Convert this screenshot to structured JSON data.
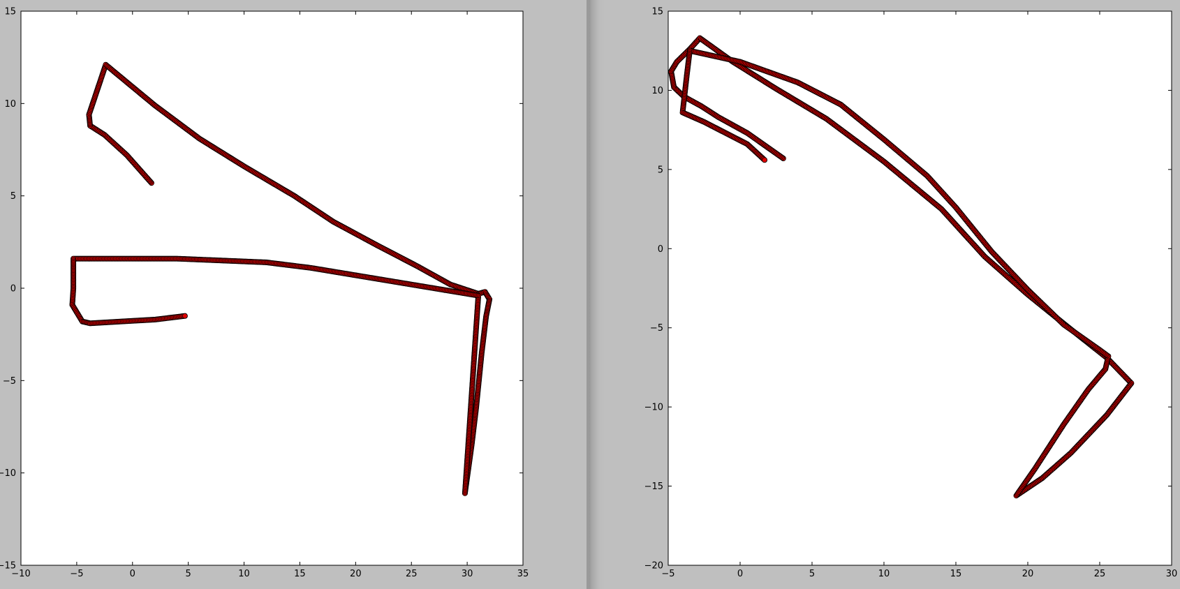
{
  "theme": {
    "background": "#bfbfbf",
    "plot_face": "#ffffff",
    "marker_fill": "#e00000",
    "marker_edge": "#000000"
  },
  "chart_data": [
    {
      "type": "scatter",
      "title": "",
      "xlabel": "",
      "ylabel": "",
      "xlim": [
        -10,
        35
      ],
      "ylim": [
        -15,
        15
      ],
      "xticks": [
        -10,
        -5,
        0,
        5,
        10,
        15,
        20,
        25,
        30,
        35
      ],
      "yticks": [
        -15,
        -10,
        -5,
        0,
        5,
        10,
        15
      ],
      "xtick_labels": [
        "−10",
        "−5",
        "0",
        "5",
        "10",
        "15",
        "20",
        "25",
        "30",
        "35"
      ],
      "ytick_labels": [
        "−15",
        "−10",
        "−5",
        "0",
        "5",
        "10",
        "15"
      ],
      "grid": false,
      "series": [
        {
          "marker": "o",
          "color": "#e00000",
          "path": [
            [
              1.7,
              5.7
            ],
            [
              -0.5,
              7.2
            ],
            [
              -2.5,
              8.3
            ],
            [
              -3.8,
              8.8
            ],
            [
              -3.9,
              9.4
            ],
            [
              -2.4,
              12.1
            ],
            [
              2.0,
              9.9
            ],
            [
              6.0,
              8.1
            ],
            [
              10.0,
              6.6
            ],
            [
              14.5,
              5.0
            ],
            [
              18.0,
              3.6
            ],
            [
              22.0,
              2.3
            ],
            [
              25.5,
              1.2
            ],
            [
              28.5,
              0.2
            ],
            [
              31.0,
              -0.3
            ],
            [
              31.6,
              -0.2
            ],
            [
              32.0,
              -0.6
            ],
            [
              31.7,
              -1.5
            ],
            [
              31.3,
              -3.5
            ],
            [
              30.8,
              -6.5
            ],
            [
              30.4,
              -8.5
            ],
            [
              29.8,
              -11.1
            ],
            [
              31.0,
              -0.4
            ],
            [
              28.0,
              -0.1
            ],
            [
              24.0,
              0.3
            ],
            [
              20.0,
              0.7
            ],
            [
              16.0,
              1.1
            ],
            [
              12.0,
              1.4
            ],
            [
              8.0,
              1.5
            ],
            [
              4.0,
              1.6
            ],
            [
              0.0,
              1.6
            ],
            [
              -3.0,
              1.6
            ],
            [
              -5.3,
              1.6
            ],
            [
              -5.3,
              0.0
            ],
            [
              -5.4,
              -0.9
            ],
            [
              -4.5,
              -1.8
            ],
            [
              -3.8,
              -1.9
            ],
            [
              -1.0,
              -1.8
            ],
            [
              2.0,
              -1.7
            ],
            [
              4.7,
              -1.5
            ]
          ]
        }
      ]
    },
    {
      "type": "scatter",
      "title": "",
      "xlabel": "",
      "ylabel": "",
      "xlim": [
        -5,
        30
      ],
      "ylim": [
        -20,
        15
      ],
      "xticks": [
        -5,
        0,
        5,
        10,
        15,
        20,
        25,
        30
      ],
      "yticks": [
        -20,
        -15,
        -10,
        -5,
        0,
        5,
        10,
        15
      ],
      "xtick_labels": [
        "−5",
        "0",
        "5",
        "10",
        "15",
        "20",
        "25",
        "30"
      ],
      "ytick_labels": [
        "−20",
        "−15",
        "−10",
        "−5",
        "0",
        "5",
        "10",
        "15"
      ],
      "grid": false,
      "series": [
        {
          "marker": "o",
          "color": "#e00000",
          "path": [
            [
              3.0,
              5.7
            ],
            [
              0.5,
              7.3
            ],
            [
              -1.5,
              8.3
            ],
            [
              -2.7,
              9.0
            ],
            [
              -3.9,
              9.6
            ],
            [
              -4.6,
              10.2
            ],
            [
              -4.8,
              11.2
            ],
            [
              -4.4,
              11.8
            ],
            [
              -3.5,
              12.6
            ],
            [
              -2.8,
              13.3
            ],
            [
              -0.5,
              11.8
            ],
            [
              2.5,
              10.1
            ],
            [
              6.0,
              8.2
            ],
            [
              10.0,
              5.5
            ],
            [
              14.0,
              2.5
            ],
            [
              17.0,
              -0.5
            ],
            [
              20.0,
              -2.9
            ],
            [
              23.0,
              -5.1
            ],
            [
              25.5,
              -6.9
            ],
            [
              27.2,
              -8.5
            ],
            [
              25.5,
              -10.5
            ],
            [
              23.0,
              -12.9
            ],
            [
              21.0,
              -14.5
            ],
            [
              19.2,
              -15.6
            ],
            [
              20.5,
              -13.9
            ],
            [
              22.5,
              -11.1
            ],
            [
              24.2,
              -8.9
            ],
            [
              25.4,
              -7.6
            ],
            [
              25.6,
              -6.8
            ],
            [
              25.0,
              -6.4
            ],
            [
              22.5,
              -4.8
            ],
            [
              20.0,
              -2.6
            ],
            [
              17.5,
              -0.2
            ],
            [
              15.0,
              2.6
            ],
            [
              13.0,
              4.6
            ],
            [
              10.0,
              6.9
            ],
            [
              7.0,
              9.1
            ],
            [
              4.0,
              10.5
            ],
            [
              0.0,
              11.8
            ],
            [
              -3.5,
              12.5
            ],
            [
              -3.7,
              11.0
            ],
            [
              -4.0,
              8.6
            ],
            [
              -2.5,
              8.0
            ],
            [
              0.5,
              6.6
            ],
            [
              1.7,
              5.6
            ]
          ]
        }
      ]
    }
  ]
}
